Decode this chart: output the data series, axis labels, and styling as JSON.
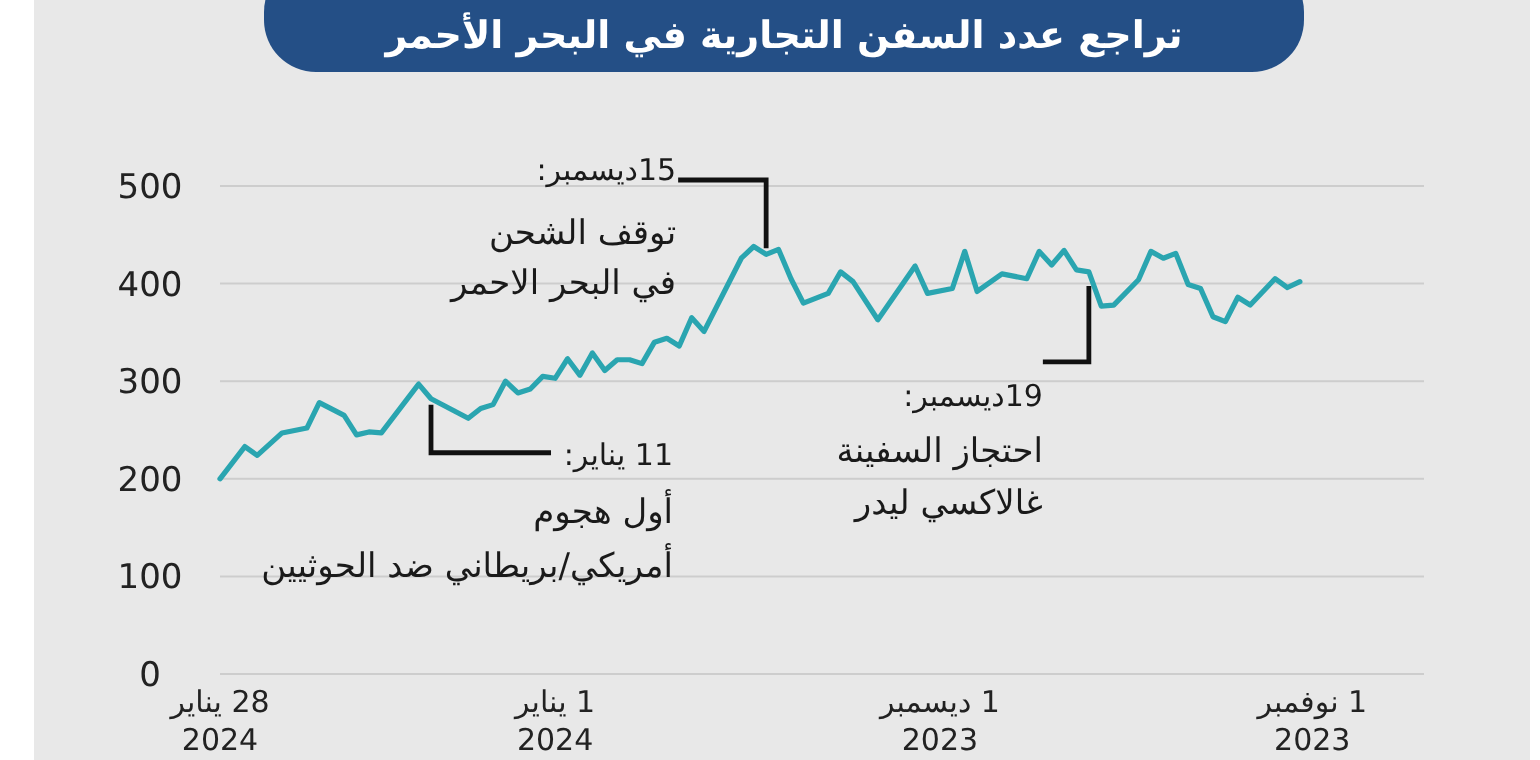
{
  "chart_data": {
    "type": "line",
    "title": "تراجع عدد السفن التجارية في البحر الأحمر",
    "x": [
      "2023-11-02",
      "2023-11-03",
      "2023-11-04",
      "2023-11-06",
      "2023-11-07",
      "2023-11-08",
      "2023-11-09",
      "2023-11-10",
      "2023-11-11",
      "2023-11-12",
      "2023-11-13",
      "2023-11-14",
      "2023-11-15",
      "2023-11-17",
      "2023-11-18",
      "2023-11-19",
      "2023-11-20",
      "2023-11-21",
      "2023-11-22",
      "2023-11-23",
      "2023-11-24",
      "2023-11-26",
      "2023-11-28",
      "2023-11-29",
      "2023-11-30",
      "2023-12-02",
      "2023-12-03",
      "2023-12-06",
      "2023-12-08",
      "2023-12-09",
      "2023-12-10",
      "2023-12-12",
      "2023-12-13",
      "2023-12-14",
      "2023-12-15",
      "2023-12-16",
      "2023-12-17",
      "2023-12-20",
      "2023-12-21",
      "2023-12-22",
      "2023-12-23",
      "2023-12-24",
      "2023-12-25",
      "2023-12-26",
      "2023-12-27",
      "2023-12-28",
      "2023-12-29",
      "2023-12-30",
      "2023-12-31",
      "2024-01-01",
      "2024-01-02",
      "2024-01-03",
      "2024-01-04",
      "2024-01-05",
      "2024-01-06",
      "2024-01-07",
      "2024-01-08",
      "2024-01-11",
      "2024-01-12",
      "2024-01-15",
      "2024-01-16",
      "2024-01-17",
      "2024-01-18",
      "2024-01-20",
      "2024-01-21",
      "2024-01-23",
      "2024-01-25",
      "2024-01-26",
      "2024-01-28"
    ],
    "series": [
      {
        "color": "#2aa5b0",
        "values": [
          402,
          396,
          405,
          378,
          386,
          361,
          366,
          395,
          399,
          431,
          426,
          433,
          404,
          378,
          377,
          412,
          414,
          434,
          419,
          433,
          405,
          410,
          392,
          433,
          395,
          390,
          418,
          363,
          402,
          412,
          390,
          380,
          405,
          435,
          430,
          438,
          426,
          351,
          365,
          336,
          344,
          340,
          318,
          322,
          322,
          311,
          329,
          306,
          323,
          303,
          305,
          292,
          288,
          300,
          276,
          272,
          262,
          282,
          297,
          247,
          248,
          245,
          265,
          278,
          252,
          247,
          224,
          233,
          200
        ]
      }
    ],
    "xlim": [
      "2024-01-28",
      "2023-10-23"
    ],
    "xticks": [
      {
        "value": "2024-01-28",
        "label": "28 يناير\n2024"
      },
      {
        "value": "2024-01-01",
        "label": "1 يناير\n2024"
      },
      {
        "value": "2023-12-01",
        "label": "1 ديسمبر\n2023"
      },
      {
        "value": "2023-11-01",
        "label": "1 نوفمبر\n2023"
      }
    ],
    "ylim": [
      0,
      500
    ],
    "yticks": [
      0,
      100,
      200,
      300,
      400,
      500
    ],
    "grid": "y",
    "marker": "none",
    "line_style": "solid",
    "annotations": [
      {
        "text": "15ديسمبر:\nتوقف الشحن\nفي البحر الاحمر",
        "x": "2023-12-15",
        "y": 430
      },
      {
        "text": "11 يناير:\nأول هجوم\nأمريكي/بريطاني ضد الحوثيين",
        "x": "2024-01-11",
        "y": 282
      },
      {
        "text": "19ديسمبر:\nاحتجاز السفينة\nغالاكسي ليدر",
        "x": "2023-11-19",
        "y": 412
      }
    ]
  }
}
